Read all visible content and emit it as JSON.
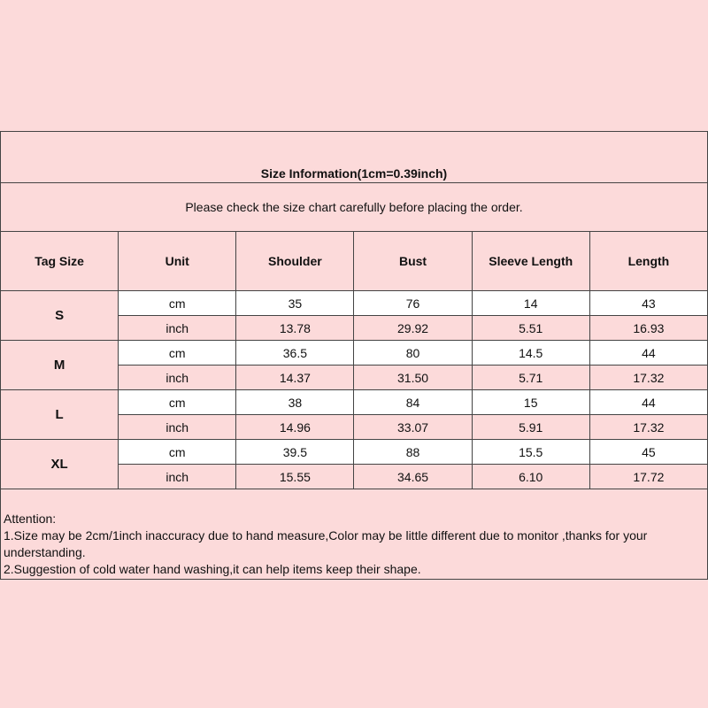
{
  "title": "Size Information(1cm=0.39inch)",
  "subtitle": "Please check the size chart carefully before placing the order.",
  "headers": [
    "Tag Size",
    "Unit",
    "Shoulder",
    "Bust",
    "Sleeve Length",
    "Length"
  ],
  "sizes": [
    {
      "tag": "S",
      "cm": {
        "unit": "cm",
        "values": [
          "35",
          "76",
          "14",
          "43"
        ]
      },
      "inch": {
        "unit": "inch",
        "values": [
          "13.78",
          "29.92",
          "5.51",
          "16.93"
        ]
      }
    },
    {
      "tag": "M",
      "cm": {
        "unit": "cm",
        "values": [
          "36.5",
          "80",
          "14.5",
          "44"
        ]
      },
      "inch": {
        "unit": "inch",
        "values": [
          "14.37",
          "31.50",
          "5.71",
          "17.32"
        ]
      }
    },
    {
      "tag": "L",
      "cm": {
        "unit": "cm",
        "values": [
          "38",
          "84",
          "15",
          "44"
        ]
      },
      "inch": {
        "unit": "inch",
        "values": [
          "14.96",
          "33.07",
          "5.91",
          "17.32"
        ]
      }
    },
    {
      "tag": "XL",
      "cm": {
        "unit": "cm",
        "values": [
          "39.5",
          "88",
          "15.5",
          "45"
        ]
      },
      "inch": {
        "unit": "inch",
        "values": [
          "15.55",
          "34.65",
          "6.10",
          "17.72"
        ]
      }
    }
  ],
  "notes": {
    "heading": "Attention:",
    "items": [
      "1.Size may be 2cm/1inch inaccuracy due to hand measure,Color may be little different due to monitor ,thanks for your understanding.",
      "2.Suggestion of cold water hand washing,it can help items keep their shape."
    ]
  },
  "colors": {
    "background": "#fcdada",
    "highlight_row": "#ffffff",
    "border": "#444444"
  }
}
